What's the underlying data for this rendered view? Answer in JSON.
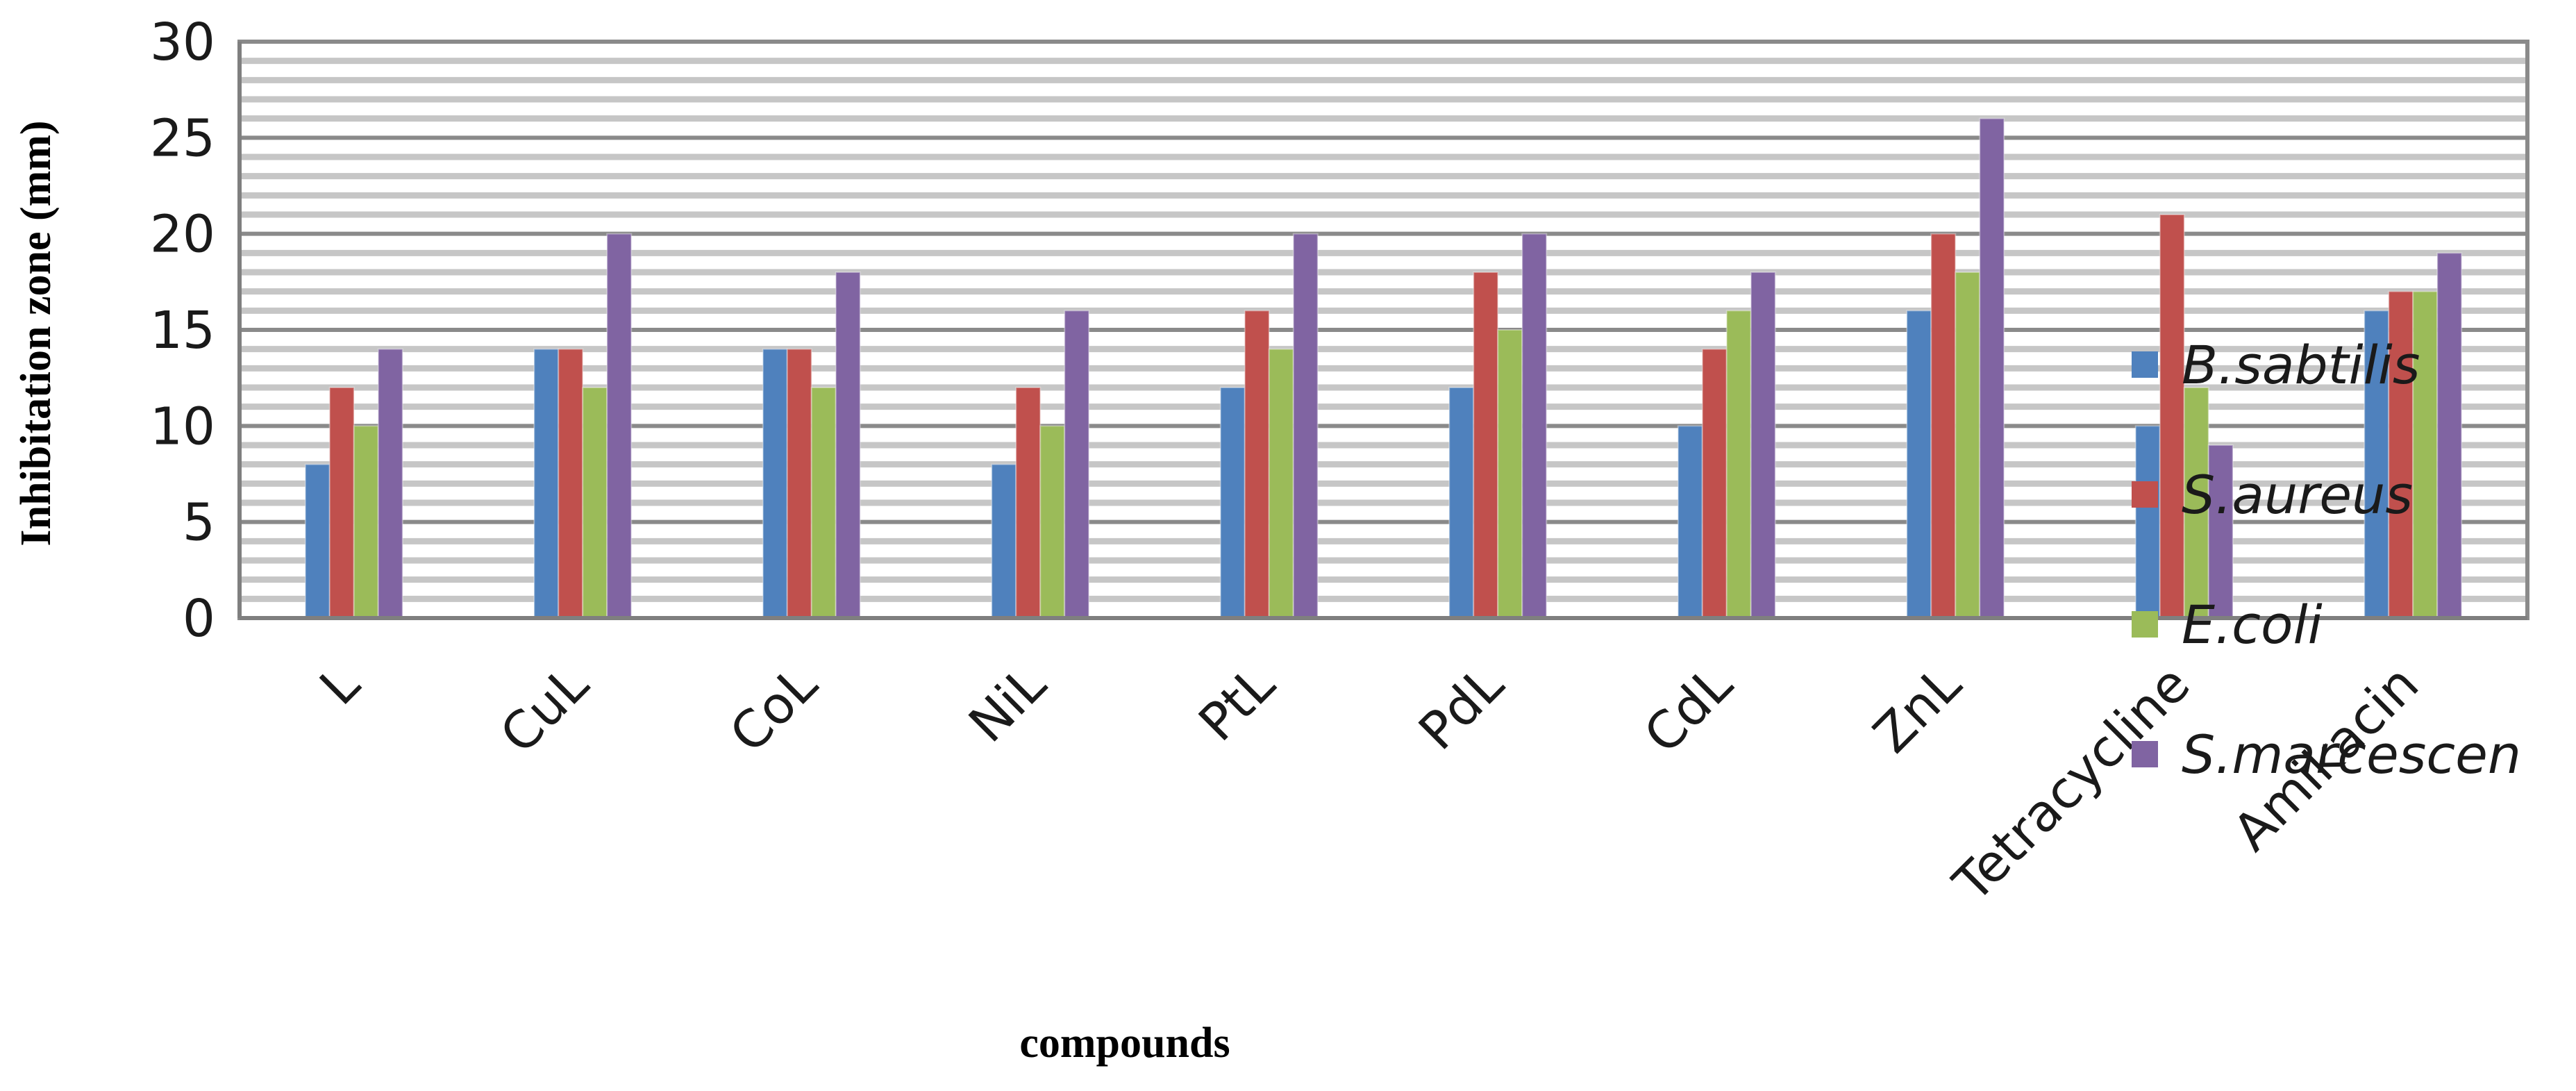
{
  "chart_data": {
    "type": "bar",
    "title": "",
    "xlabel": "compounds",
    "ylabel": "Inhibitation zone (mm)",
    "ylim": [
      0,
      30
    ],
    "yticks": [
      0,
      5,
      10,
      15,
      20,
      25,
      30
    ],
    "grid": true,
    "legend_position": "right",
    "categories": [
      "L",
      "CuL",
      "CoL",
      "NiL",
      "PtL",
      "PdL",
      "CdL",
      "ZnL",
      "Tetracycline",
      "Amikacin"
    ],
    "series": [
      {
        "name": "B.sabtilis",
        "color": "#4f81bd",
        "values": [
          8,
          14,
          14,
          8,
          12,
          12,
          10,
          16,
          10,
          16
        ]
      },
      {
        "name": "S.aureus",
        "color": "#c0504d",
        "values": [
          12,
          14,
          14,
          12,
          16,
          18,
          14,
          20,
          21,
          17
        ]
      },
      {
        "name": "E.coli",
        "color": "#9bbb59",
        "values": [
          10,
          12,
          12,
          10,
          14,
          15,
          16,
          18,
          12,
          17
        ]
      },
      {
        "name": "S.marcescen",
        "color": "#8064a2",
        "values": [
          14,
          20,
          18,
          16,
          20,
          20,
          18,
          26,
          9,
          19
        ]
      }
    ]
  }
}
